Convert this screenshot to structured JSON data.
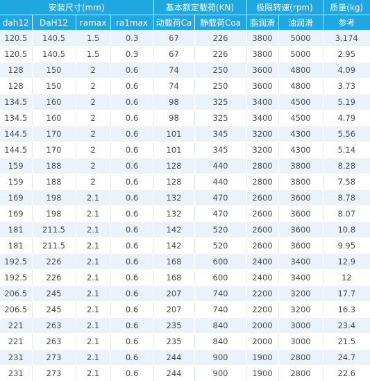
{
  "header": {
    "group1": "安装尺寸(mm)",
    "group2": "基本额定载荷(KN)",
    "group3": "极限转速(rpm)",
    "group4": "质量(kg)",
    "columns": [
      "dah12",
      "DaH12",
      "ramax",
      "ra1max",
      "动载荷Ca",
      "静载荷Coa",
      "脂润滑",
      "油润滑",
      "参考"
    ]
  },
  "rows": [
    [
      "120.5",
      "140.5",
      "1.5",
      "0.3",
      "67",
      "226",
      "3800",
      "5000",
      "3.174"
    ],
    [
      "120.5",
      "140.5",
      "1.5",
      "0.3",
      "67",
      "226",
      "3800",
      "5000",
      "2.95"
    ],
    [
      "128",
      "150",
      "2",
      "0.6",
      "74",
      "250",
      "3600",
      "4800",
      "4.09"
    ],
    [
      "128",
      "150",
      "2",
      "0.6",
      "74",
      "250",
      "3600",
      "4800",
      "3.73"
    ],
    [
      "134.5",
      "160",
      "2",
      "0.6",
      "98",
      "325",
      "3400",
      "4500",
      "5.19"
    ],
    [
      "134.5",
      "160",
      "2",
      "0.6",
      "98",
      "325",
      "3400",
      "4500",
      "4.79"
    ],
    [
      "144.5",
      "170",
      "2",
      "0.6",
      "101",
      "345",
      "3200",
      "4300",
      "5.56"
    ],
    [
      "144.5",
      "170",
      "2",
      "0.6",
      "101",
      "345",
      "3200",
      "4300",
      "5.14"
    ],
    [
      "159",
      "188",
      "2",
      "0.6",
      "128",
      "440",
      "2800",
      "3800",
      "8.28"
    ],
    [
      "159",
      "188",
      "2",
      "0.6",
      "128",
      "440",
      "2800",
      "3800",
      "7.58"
    ],
    [
      "169",
      "198",
      "2.1",
      "0.6",
      "132",
      "470",
      "2600",
      "3600",
      "8.78"
    ],
    [
      "169",
      "198",
      "2.1",
      "0.6",
      "132",
      "470",
      "2600",
      "3600",
      "8.07"
    ],
    [
      "181",
      "211.5",
      "2.1",
      "0.6",
      "142",
      "520",
      "2600",
      "3600",
      "10.8"
    ],
    [
      "181",
      "211.5",
      "2.1",
      "0.6",
      "142",
      "520",
      "2600",
      "3600",
      "9.95"
    ],
    [
      "192.5",
      "226",
      "2.1",
      "0.6",
      "168",
      "600",
      "2400",
      "3400",
      "12.9"
    ],
    [
      "192.5",
      "226",
      "2.1",
      "0.6",
      "168",
      "600",
      "2400",
      "3400",
      "12"
    ],
    [
      "206.5",
      "245",
      "2.1",
      "0.6",
      "207",
      "740",
      "2200",
      "3200",
      "17.7"
    ],
    [
      "206.5",
      "245",
      "2.1",
      "0.6",
      "207",
      "740",
      "2200",
      "3200",
      "16.3"
    ],
    [
      "221",
      "263",
      "2.1",
      "0.6",
      "235",
      "840",
      "2000",
      "3000",
      "23.4"
    ],
    [
      "221",
      "263",
      "2.1",
      "0.6",
      "235",
      "840",
      "2000",
      "3000",
      "21.5"
    ],
    [
      "231",
      "273",
      "2.1",
      "0.6",
      "244",
      "900",
      "1900",
      "2800",
      "24.7"
    ],
    [
      "231",
      "273",
      "2.1",
      "0.6",
      "244",
      "900",
      "1900",
      "2800",
      "22.6"
    ]
  ]
}
